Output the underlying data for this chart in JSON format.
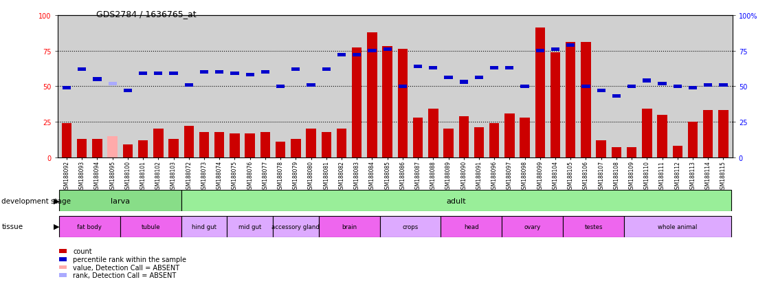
{
  "title": "GDS2784 / 1636765_at",
  "samples": [
    "GSM188092",
    "GSM188093",
    "GSM188094",
    "GSM188095",
    "GSM188100",
    "GSM188101",
    "GSM188102",
    "GSM188103",
    "GSM188072",
    "GSM188073",
    "GSM188074",
    "GSM188075",
    "GSM188076",
    "GSM188077",
    "GSM188078",
    "GSM188079",
    "GSM188080",
    "GSM188081",
    "GSM188082",
    "GSM188083",
    "GSM188084",
    "GSM188085",
    "GSM188086",
    "GSM188087",
    "GSM188088",
    "GSM188089",
    "GSM188090",
    "GSM188091",
    "GSM188096",
    "GSM188097",
    "GSM188098",
    "GSM188099",
    "GSM188104",
    "GSM188105",
    "GSM188106",
    "GSM188107",
    "GSM188108",
    "GSM188109",
    "GSM188110",
    "GSM188111",
    "GSM188112",
    "GSM188113",
    "GSM188114",
    "GSM188115"
  ],
  "counts": [
    24,
    13,
    13,
    15,
    9,
    12,
    20,
    13,
    22,
    18,
    18,
    17,
    17,
    18,
    11,
    13,
    20,
    18,
    20,
    77,
    88,
    78,
    76,
    28,
    34,
    20,
    29,
    21,
    24,
    31,
    28,
    91,
    74,
    81,
    81,
    12,
    7,
    7,
    34,
    30,
    8,
    25,
    33,
    33
  ],
  "ranks": [
    49,
    62,
    55,
    52,
    47,
    59,
    59,
    59,
    51,
    60,
    60,
    59,
    58,
    60,
    50,
    62,
    51,
    62,
    72,
    72,
    75,
    76,
    50,
    64,
    63,
    56,
    53,
    56,
    63,
    63,
    50,
    75,
    76,
    79,
    50,
    47,
    43,
    50,
    54,
    52,
    50,
    49,
    51,
    51
  ],
  "absent_bar_indices": [
    3
  ],
  "absent_dot_indices": [
    3
  ],
  "bar_color_normal": "#cc0000",
  "bar_color_absent": "#ffaaaa",
  "dot_color_normal": "#0000cc",
  "dot_color_absent": "#aaaaff",
  "yticks": [
    0,
    25,
    50,
    75,
    100
  ],
  "hlines": [
    25,
    50,
    75
  ],
  "bg_color": "#d0d0d0",
  "larva": {
    "label": "larva",
    "start": 0,
    "end": 8,
    "color": "#88dd88"
  },
  "adult": {
    "label": "adult",
    "start": 8,
    "end": 44,
    "color": "#99ee99"
  },
  "tissues": [
    {
      "label": "fat body",
      "start": 0,
      "end": 4,
      "color": "#ee66ee"
    },
    {
      "label": "tubule",
      "start": 4,
      "end": 8,
      "color": "#ee66ee"
    },
    {
      "label": "hind gut",
      "start": 8,
      "end": 11,
      "color": "#ddaaff"
    },
    {
      "label": "mid gut",
      "start": 11,
      "end": 14,
      "color": "#ddaaff"
    },
    {
      "label": "accessory gland",
      "start": 14,
      "end": 17,
      "color": "#ddaaff"
    },
    {
      "label": "brain",
      "start": 17,
      "end": 21,
      "color": "#ee66ee"
    },
    {
      "label": "crops",
      "start": 21,
      "end": 25,
      "color": "#ddaaff"
    },
    {
      "label": "head",
      "start": 25,
      "end": 29,
      "color": "#ee66ee"
    },
    {
      "label": "ovary",
      "start": 29,
      "end": 33,
      "color": "#ee66ee"
    },
    {
      "label": "testes",
      "start": 33,
      "end": 37,
      "color": "#ee66ee"
    },
    {
      "label": "whole animal",
      "start": 37,
      "end": 44,
      "color": "#ddaaff"
    }
  ],
  "legend_items": [
    {
      "color": "#cc0000",
      "label": "count"
    },
    {
      "color": "#0000cc",
      "label": "percentile rank within the sample"
    },
    {
      "color": "#ffaaaa",
      "label": "value, Detection Call = ABSENT"
    },
    {
      "color": "#aaaaff",
      "label": "rank, Detection Call = ABSENT"
    }
  ]
}
